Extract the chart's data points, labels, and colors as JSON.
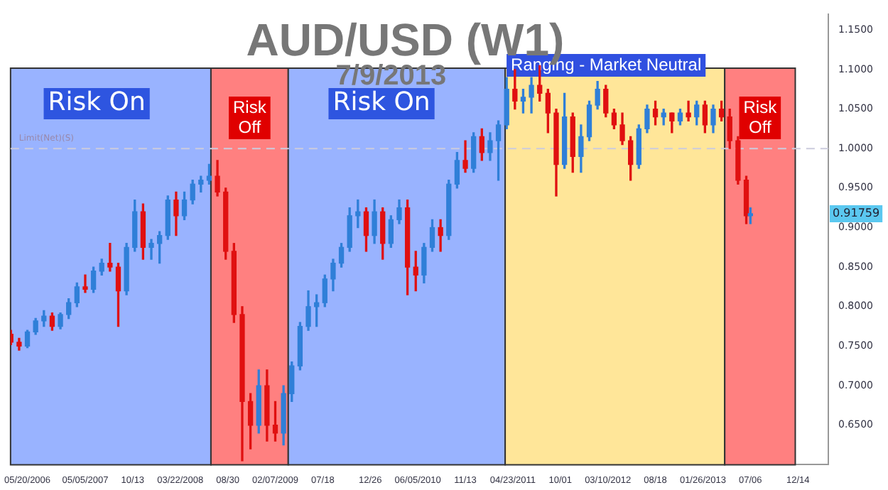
{
  "chart_data": {
    "type": "candlestick",
    "title": "AUD/USD (W1)",
    "subtitle": "7/9/2013",
    "x": [
      "2006-08-26",
      "2006-09-23",
      "2006-10-21",
      "2006-11-18",
      "2006-12-16",
      "2007-01-13",
      "2007-02-10",
      "2007-03-10",
      "2007-04-07",
      "2007-05-05",
      "2007-06-02",
      "2007-06-30",
      "2007-07-28",
      "2007-08-25",
      "2007-09-22",
      "2007-10-20",
      "2007-11-17",
      "2007-12-15",
      "2008-01-12",
      "2008-02-09",
      "2008-03-08",
      "2008-04-05",
      "2008-05-03",
      "2008-05-31",
      "2008-06-28",
      "2008-07-26",
      "2008-08-23",
      "2008-09-20",
      "2008-10-18",
      "2008-11-15",
      "2008-12-13",
      "2009-01-10",
      "2009-02-07",
      "2009-03-07",
      "2009-04-04",
      "2009-05-02",
      "2009-05-30",
      "2009-06-27",
      "2009-07-25",
      "2009-08-22",
      "2009-09-19",
      "2009-10-17",
      "2009-11-14",
      "2009-12-12",
      "2010-01-09",
      "2010-02-06",
      "2010-03-06",
      "2010-04-03",
      "2010-05-01",
      "2010-05-29",
      "2010-06-26",
      "2010-07-24",
      "2010-08-21",
      "2010-09-18",
      "2010-10-16",
      "2010-11-13",
      "2010-12-11",
      "2011-01-08",
      "2011-02-05",
      "2011-03-05",
      "2011-04-02",
      "2011-04-30",
      "2011-05-28",
      "2011-06-25",
      "2011-07-23",
      "2011-08-20",
      "2011-09-17",
      "2011-10-15",
      "2011-11-12",
      "2011-12-10",
      "2012-01-07",
      "2012-02-04",
      "2012-03-03",
      "2012-03-31",
      "2012-04-28",
      "2012-05-26",
      "2012-06-23",
      "2012-07-21",
      "2012-08-18",
      "2012-09-15",
      "2012-10-13",
      "2012-11-10",
      "2012-12-08",
      "2013-01-05",
      "2013-02-02",
      "2013-03-02",
      "2013-03-30",
      "2013-04-27",
      "2013-05-25",
      "2013-06-22",
      "2013-07-06"
    ],
    "ohlc": [
      [
        0.765,
        0.77,
        0.752,
        0.755
      ],
      [
        0.755,
        0.76,
        0.745,
        0.75
      ],
      [
        0.75,
        0.77,
        0.748,
        0.768
      ],
      [
        0.768,
        0.785,
        0.765,
        0.782
      ],
      [
        0.782,
        0.795,
        0.775,
        0.788
      ],
      [
        0.788,
        0.792,
        0.77,
        0.775
      ],
      [
        0.775,
        0.792,
        0.772,
        0.79
      ],
      [
        0.79,
        0.81,
        0.785,
        0.805
      ],
      [
        0.805,
        0.83,
        0.8,
        0.825
      ],
      [
        0.825,
        0.84,
        0.818,
        0.822
      ],
      [
        0.822,
        0.85,
        0.818,
        0.845
      ],
      [
        0.845,
        0.86,
        0.84,
        0.855
      ],
      [
        0.855,
        0.88,
        0.845,
        0.85
      ],
      [
        0.85,
        0.855,
        0.775,
        0.82
      ],
      [
        0.82,
        0.88,
        0.815,
        0.875
      ],
      [
        0.875,
        0.935,
        0.87,
        0.92
      ],
      [
        0.92,
        0.93,
        0.86,
        0.875
      ],
      [
        0.875,
        0.885,
        0.86,
        0.88
      ],
      [
        0.88,
        0.895,
        0.855,
        0.89
      ],
      [
        0.89,
        0.94,
        0.885,
        0.935
      ],
      [
        0.935,
        0.945,
        0.89,
        0.915
      ],
      [
        0.915,
        0.945,
        0.91,
        0.935
      ],
      [
        0.935,
        0.96,
        0.93,
        0.955
      ],
      [
        0.955,
        0.965,
        0.945,
        0.96
      ],
      [
        0.96,
        0.98,
        0.955,
        0.965
      ],
      [
        0.965,
        0.985,
        0.94,
        0.945
      ],
      [
        0.945,
        0.95,
        0.86,
        0.87
      ],
      [
        0.87,
        0.88,
        0.78,
        0.79
      ],
      [
        0.79,
        0.8,
        0.605,
        0.68
      ],
      [
        0.68,
        0.69,
        0.62,
        0.65
      ],
      [
        0.65,
        0.72,
        0.64,
        0.7
      ],
      [
        0.7,
        0.72,
        0.63,
        0.65
      ],
      [
        0.65,
        0.68,
        0.63,
        0.64
      ],
      [
        0.64,
        0.7,
        0.625,
        0.69
      ],
      [
        0.69,
        0.73,
        0.68,
        0.725
      ],
      [
        0.725,
        0.78,
        0.72,
        0.775
      ],
      [
        0.775,
        0.82,
        0.77,
        0.8
      ],
      [
        0.8,
        0.815,
        0.775,
        0.805
      ],
      [
        0.805,
        0.84,
        0.8,
        0.835
      ],
      [
        0.835,
        0.86,
        0.82,
        0.855
      ],
      [
        0.855,
        0.88,
        0.85,
        0.875
      ],
      [
        0.875,
        0.925,
        0.87,
        0.915
      ],
      [
        0.915,
        0.935,
        0.9,
        0.92
      ],
      [
        0.92,
        0.925,
        0.87,
        0.89
      ],
      [
        0.89,
        0.935,
        0.88,
        0.92
      ],
      [
        0.92,
        0.925,
        0.86,
        0.88
      ],
      [
        0.88,
        0.915,
        0.875,
        0.91
      ],
      [
        0.91,
        0.935,
        0.905,
        0.925
      ],
      [
        0.925,
        0.935,
        0.815,
        0.85
      ],
      [
        0.85,
        0.87,
        0.82,
        0.84
      ],
      [
        0.84,
        0.88,
        0.83,
        0.875
      ],
      [
        0.875,
        0.91,
        0.87,
        0.9
      ],
      [
        0.9,
        0.91,
        0.87,
        0.89
      ],
      [
        0.89,
        0.96,
        0.885,
        0.955
      ],
      [
        0.955,
        0.995,
        0.95,
        0.985
      ],
      [
        0.985,
        1.01,
        0.97,
        0.975
      ],
      [
        0.975,
        1.02,
        0.97,
        1.015
      ],
      [
        1.015,
        1.025,
        0.985,
        0.995
      ],
      [
        0.995,
        1.02,
        0.985,
        1.01
      ],
      [
        1.01,
        1.035,
        0.96,
        1.03
      ],
      [
        1.03,
        1.09,
        1.025,
        1.075
      ],
      [
        1.075,
        1.1,
        1.05,
        1.06
      ],
      [
        1.06,
        1.075,
        1.045,
        1.065
      ],
      [
        1.065,
        1.09,
        1.045,
        1.08
      ],
      [
        1.08,
        1.105,
        1.06,
        1.07
      ],
      [
        1.07,
        1.075,
        1.02,
        1.045
      ],
      [
        1.045,
        1.05,
        0.94,
        0.98
      ],
      [
        0.98,
        1.07,
        0.975,
        1.04
      ],
      [
        1.04,
        1.045,
        0.97,
        0.99
      ],
      [
        0.99,
        1.03,
        0.97,
        1.015
      ],
      [
        1.015,
        1.06,
        1.01,
        1.055
      ],
      [
        1.055,
        1.085,
        1.05,
        1.075
      ],
      [
        1.075,
        1.08,
        1.04,
        1.045
      ],
      [
        1.045,
        1.05,
        1.025,
        1.03
      ],
      [
        1.03,
        1.045,
        1.005,
        1.01
      ],
      [
        1.01,
        1.015,
        0.96,
        0.98
      ],
      [
        0.98,
        1.03,
        0.975,
        1.025
      ],
      [
        1.025,
        1.055,
        1.02,
        1.05
      ],
      [
        1.05,
        1.06,
        1.03,
        1.04
      ],
      [
        1.04,
        1.05,
        1.03,
        1.045
      ],
      [
        1.045,
        1.045,
        1.02,
        1.035
      ],
      [
        1.035,
        1.05,
        1.03,
        1.045
      ],
      [
        1.045,
        1.06,
        1.035,
        1.04
      ],
      [
        1.04,
        1.06,
        1.03,
        1.055
      ],
      [
        1.055,
        1.06,
        1.02,
        1.03
      ],
      [
        1.03,
        1.055,
        1.02,
        1.05
      ],
      [
        1.05,
        1.06,
        1.035,
        1.04
      ],
      [
        1.04,
        1.05,
        1.0,
        1.01
      ],
      [
        1.01,
        1.015,
        0.955,
        0.96
      ],
      [
        0.96,
        0.965,
        0.905,
        0.915
      ],
      [
        0.915,
        0.925,
        0.905,
        0.91759
      ]
    ],
    "colors": [
      "#e01010",
      "#e01010",
      "#2f7fd8",
      "#2f7fd8",
      "#2f7fd8",
      "#e01010",
      "#2f7fd8",
      "#2f7fd8",
      "#2f7fd8",
      "#e01010",
      "#2f7fd8",
      "#2f7fd8",
      "#e01010",
      "#e01010",
      "#2f7fd8",
      "#2f7fd8",
      "#e01010",
      "#2f7fd8",
      "#2f7fd8",
      "#2f7fd8",
      "#e01010",
      "#2f7fd8",
      "#2f7fd8",
      "#2f7fd8",
      "#2f7fd8",
      "#e01010",
      "#e01010",
      "#e01010",
      "#e01010",
      "#e01010",
      "#2f7fd8",
      "#e01010",
      "#e01010",
      "#2f7fd8",
      "#2f7fd8",
      "#2f7fd8",
      "#2f7fd8",
      "#2f7fd8",
      "#2f7fd8",
      "#2f7fd8",
      "#2f7fd8",
      "#2f7fd8",
      "#2f7fd8",
      "#e01010",
      "#2f7fd8",
      "#e01010",
      "#2f7fd8",
      "#2f7fd8",
      "#e01010",
      "#e01010",
      "#2f7fd8",
      "#2f7fd8",
      "#e01010",
      "#2f7fd8",
      "#2f7fd8",
      "#e01010",
      "#2f7fd8",
      "#e01010",
      "#2f7fd8",
      "#2f7fd8",
      "#2f7fd8",
      "#e01010",
      "#2f7fd8",
      "#2f7fd8",
      "#e01010",
      "#e01010",
      "#e01010",
      "#2f7fd8",
      "#e01010",
      "#2f7fd8",
      "#2f7fd8",
      "#2f7fd8",
      "#e01010",
      "#e01010",
      "#e01010",
      "#e01010",
      "#2f7fd8",
      "#2f7fd8",
      "#e01010",
      "#2f7fd8",
      "#e01010",
      "#2f7fd8",
      "#e01010",
      "#2f7fd8",
      "#e01010",
      "#2f7fd8",
      "#e01010",
      "#e01010",
      "#e01010",
      "#e01010",
      "#2f7fd8"
    ],
    "xlim": [
      "2006-08-25",
      "2014-03-27"
    ],
    "xticks": [
      {
        "value": "2006-10-21",
        "label": "05/20/2006"
      },
      {
        "value": "2007-05-05",
        "label": "05/05/2007"
      },
      {
        "value": "2007-10-13",
        "label": "10/13"
      },
      {
        "value": "2008-03-22",
        "label": "03/22/2008"
      },
      {
        "value": "2008-08-30",
        "label": "08/30"
      },
      {
        "value": "2009-02-07",
        "label": "02/07/2009"
      },
      {
        "value": "2009-07-18",
        "label": "07/18"
      },
      {
        "value": "2009-12-26",
        "label": "12/26"
      },
      {
        "value": "2010-06-05",
        "label": "06/05/2010"
      },
      {
        "value": "2010-11-13",
        "label": "11/13"
      },
      {
        "value": "2011-04-23",
        "label": "04/23/2011"
      },
      {
        "value": "2011-10-01",
        "label": "10/01"
      },
      {
        "value": "2012-03-10",
        "label": "03/10/2012"
      },
      {
        "value": "2012-08-18",
        "label": "08/18"
      },
      {
        "value": "2013-01-26",
        "label": "01/26/2013"
      },
      {
        "value": "2013-07-06",
        "label": "07/06"
      },
      {
        "value": "2013-12-14",
        "label": "12/14"
      }
    ],
    "ylim": [
      0.6,
      1.17
    ],
    "yticks": [
      {
        "value": 0.65,
        "label": "0.6500"
      },
      {
        "value": 0.7,
        "label": "0.7000"
      },
      {
        "value": 0.75,
        "label": "0.7500"
      },
      {
        "value": 0.8,
        "label": "0.8000"
      },
      {
        "value": 0.85,
        "label": "0.8500"
      },
      {
        "value": 0.9,
        "label": "0.9000"
      },
      {
        "value": 0.95,
        "label": "0.9500"
      },
      {
        "value": 1.0,
        "label": "1.0000"
      },
      {
        "value": 1.05,
        "label": "1.0500"
      },
      {
        "value": 1.1,
        "label": "1.1000"
      },
      {
        "value": 1.15,
        "label": "1.1500"
      }
    ],
    "bands": [
      {
        "axis": "x",
        "from": "2006-08-25",
        "to": "2008-07-04",
        "label": "Risk On",
        "color": "#99b3ff"
      },
      {
        "axis": "x",
        "from": "2008-07-04",
        "to": "2009-03-23",
        "label": "Risk Off",
        "color": "#ff8080"
      },
      {
        "axis": "x",
        "from": "2009-03-23",
        "to": "2011-03-28",
        "label": "Risk On",
        "color": "#99b3ff"
      },
      {
        "axis": "x",
        "from": "2011-03-28",
        "to": "2013-04-10",
        "label": "Ranging - Market Neutral",
        "color": "#ffe699"
      },
      {
        "axis": "x",
        "from": "2013-04-10",
        "to": "2013-12-05",
        "label": "Risk Off",
        "color": "#ff8080"
      }
    ],
    "ref_lines": [
      {
        "axis": "y",
        "value": 1.0,
        "label": "Limit(Net)(S)",
        "line_style": "dashed",
        "color": "#ccccdd"
      }
    ],
    "annotations": [
      "0.91759"
    ],
    "grid": false,
    "legend": false
  }
}
